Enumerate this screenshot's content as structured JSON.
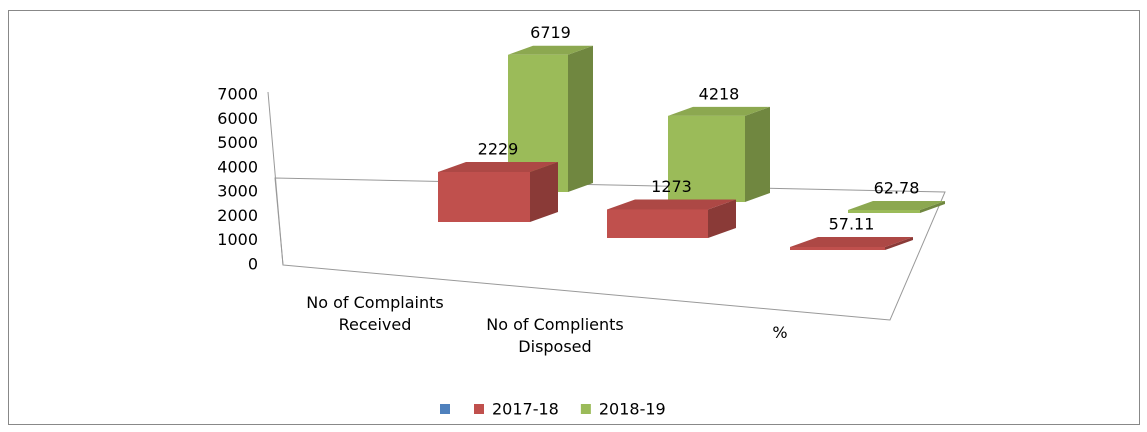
{
  "chart_data": {
    "type": "bar3d",
    "categories": [
      "No of Complaints Received",
      "No of Complients Disposed",
      "%"
    ],
    "series": [
      {
        "name": null,
        "color": "#4f81bd",
        "values": [
          null,
          null,
          null
        ]
      },
      {
        "name": "2017-18",
        "color": "#c0504d",
        "values": [
          2229,
          1273,
          57.11
        ]
      },
      {
        "name": "2018-19",
        "color": "#9bbb59",
        "values": [
          6719,
          4218,
          62.78
        ]
      }
    ],
    "ylim": [
      0,
      7000
    ],
    "yticks": [
      0,
      1000,
      2000,
      3000,
      4000,
      5000,
      6000,
      7000
    ],
    "legend": "bottom"
  }
}
